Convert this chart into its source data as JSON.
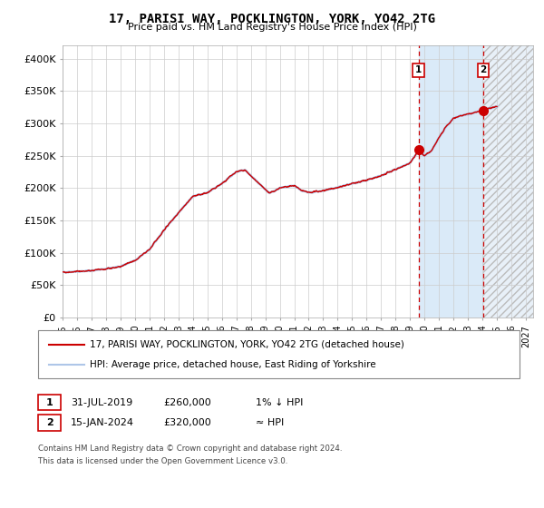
{
  "title": "17, PARISI WAY, POCKLINGTON, YORK, YO42 2TG",
  "subtitle": "Price paid vs. HM Land Registry's House Price Index (HPI)",
  "ylabel_ticks": [
    "£0",
    "£50K",
    "£100K",
    "£150K",
    "£200K",
    "£250K",
    "£300K",
    "£350K",
    "£400K"
  ],
  "ytick_values": [
    0,
    50000,
    100000,
    150000,
    200000,
    250000,
    300000,
    350000,
    400000
  ],
  "ylim": [
    0,
    420000
  ],
  "xlim_start": 1995.0,
  "xlim_end": 2027.5,
  "xtick_years": [
    1995,
    1996,
    1997,
    1998,
    1999,
    2000,
    2001,
    2002,
    2003,
    2004,
    2005,
    2006,
    2007,
    2008,
    2009,
    2010,
    2011,
    2012,
    2013,
    2014,
    2015,
    2016,
    2017,
    2018,
    2019,
    2020,
    2021,
    2022,
    2023,
    2024,
    2025,
    2026,
    2027
  ],
  "hpi_line_color": "#aec6e8",
  "price_line_color": "#cc0000",
  "bg_color": "#ffffff",
  "plot_bg_color": "#ffffff",
  "grid_color": "#cccccc",
  "shade_color": "#daeaf8",
  "hatch_color": "#cccccc",
  "sale1_x": 2019.58,
  "sale1_y": 260000,
  "sale2_x": 2024.04,
  "sale2_y": 320000,
  "legend_line1": "17, PARISI WAY, POCKLINGTON, YORK, YO42 2TG (detached house)",
  "legend_line2": "HPI: Average price, detached house, East Riding of Yorkshire",
  "footnote1": "Contains HM Land Registry data © Crown copyright and database right 2024.",
  "footnote2": "This data is licensed under the Open Government Licence v3.0.",
  "sale1_label": "1",
  "sale2_label": "2",
  "sale1_date": "31-JUL-2019",
  "sale1_price": "£260,000",
  "sale1_hpi": "1% ↓ HPI",
  "sale2_date": "15-JAN-2024",
  "sale2_price": "£320,000",
  "sale2_hpi": "≈ HPI"
}
